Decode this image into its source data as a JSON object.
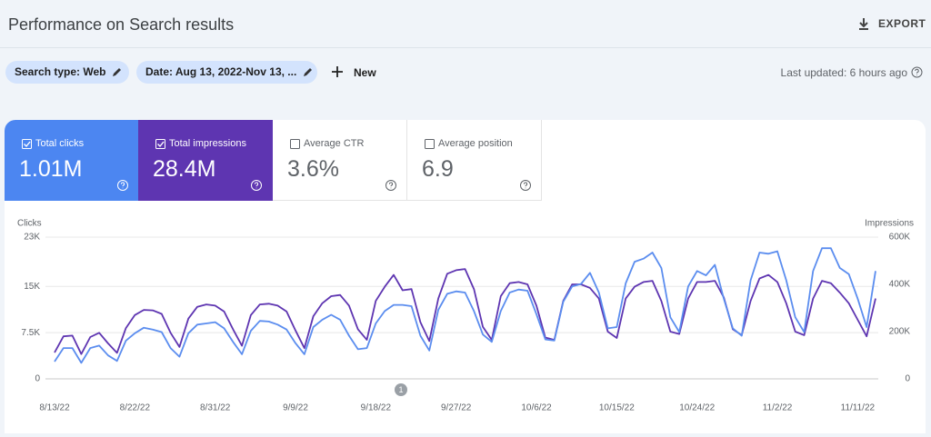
{
  "header": {
    "title": "Performance on Search results",
    "export": "EXPORT"
  },
  "filters": {
    "search_type": "Search type: Web",
    "date": "Date: Aug 13, 2022-Nov 13, ...",
    "new": "New",
    "last_updated": "Last updated: 6 hours ago"
  },
  "metrics": [
    {
      "label": "Total clicks",
      "value": "1.01M",
      "checked": true
    },
    {
      "label": "Total impressions",
      "value": "28.4M",
      "checked": true
    },
    {
      "label": "Average CTR",
      "value": "3.6%",
      "checked": false
    },
    {
      "label": "Average position",
      "value": "6.9",
      "checked": false
    }
  ],
  "chart_data": {
    "type": "line",
    "categories": [
      "8/13/22",
      null,
      null,
      null,
      null,
      null,
      null,
      null,
      null,
      "8/22/22",
      null,
      null,
      null,
      null,
      null,
      null,
      null,
      null,
      "8/31/22",
      null,
      null,
      null,
      null,
      null,
      null,
      null,
      null,
      "9/9/22",
      null,
      null,
      null,
      null,
      null,
      null,
      null,
      null,
      "9/18/22",
      null,
      null,
      null,
      null,
      null,
      null,
      null,
      null,
      "9/27/22",
      null,
      null,
      null,
      null,
      null,
      null,
      null,
      null,
      "10/6/22",
      null,
      null,
      null,
      null,
      null,
      null,
      null,
      null,
      "10/15/22",
      null,
      null,
      null,
      null,
      null,
      null,
      null,
      null,
      "10/24/22",
      null,
      null,
      null,
      null,
      null,
      null,
      null,
      null,
      "11/2/22",
      null,
      null,
      null,
      null,
      null,
      null,
      null,
      null,
      "11/11/22",
      null,
      null
    ],
    "series": [
      {
        "name": "Clicks",
        "color": "#5b8def",
        "values": [
          2800,
          5000,
          5000,
          2600,
          5000,
          5400,
          3800,
          2900,
          6200,
          7400,
          8300,
          8000,
          7600,
          5000,
          3600,
          7400,
          8800,
          9000,
          9200,
          8200,
          6000,
          4000,
          7800,
          9400,
          9300,
          8800,
          8000,
          5800,
          4000,
          8400,
          9600,
          10400,
          9600,
          7000,
          4800,
          5000,
          9000,
          11000,
          12000,
          12000,
          11800,
          7000,
          4600,
          11200,
          13800,
          14200,
          14000,
          11000,
          7200,
          6000,
          11000,
          14000,
          14500,
          14300,
          10500,
          6400,
          6200,
          12500,
          15000,
          15400,
          17200,
          14000,
          8200,
          8400,
          15500,
          19000,
          19500,
          20500,
          18000,
          10000,
          7600,
          15000,
          17500,
          16800,
          18500,
          13000,
          8200,
          7000,
          16000,
          20500,
          20300,
          20700,
          16000,
          10000,
          7600,
          17500,
          21200,
          21200,
          18000,
          17000,
          13000,
          8400,
          17500
        ]
      },
      {
        "name": "Impressions",
        "color": "#5e35b1",
        "axis": "y2",
        "values": [
          111000,
          180000,
          183000,
          105000,
          177000,
          195000,
          150000,
          110000,
          215000,
          270000,
          292000,
          290000,
          275000,
          195000,
          135000,
          255000,
          305000,
          315000,
          310000,
          285000,
          210000,
          140000,
          270000,
          315000,
          318000,
          310000,
          285000,
          205000,
          130000,
          265000,
          320000,
          350000,
          355000,
          310000,
          210000,
          165000,
          330000,
          390000,
          440000,
          375000,
          380000,
          240000,
          160000,
          340000,
          445000,
          460000,
          465000,
          380000,
          220000,
          165000,
          350000,
          405000,
          410000,
          400000,
          310000,
          175000,
          165000,
          330000,
          400000,
          400000,
          385000,
          340000,
          200000,
          173000,
          340000,
          390000,
          410000,
          415000,
          330000,
          200000,
          190000,
          340000,
          410000,
          410000,
          415000,
          345000,
          210000,
          185000,
          330000,
          425000,
          440000,
          410000,
          320000,
          200000,
          185000,
          340000,
          415000,
          405000,
          365000,
          320000,
          250000,
          180000,
          340000
        ]
      }
    ],
    "ylim": [
      0,
      23000
    ],
    "yticks": [
      0,
      {
        "value": 7500,
        "label": "7.5K"
      },
      {
        "value": 15000,
        "label": "15K"
      },
      {
        "value": 23000,
        "label": "23K"
      }
    ],
    "y2lim": [
      0,
      600000
    ],
    "y2ticks": [
      0,
      {
        "value": 200000,
        "label": "200K"
      },
      {
        "value": 400000,
        "label": "400K"
      },
      {
        "value": 600000,
        "label": "600K"
      }
    ],
    "grid": true,
    "annotations": [
      "1"
    ]
  }
}
